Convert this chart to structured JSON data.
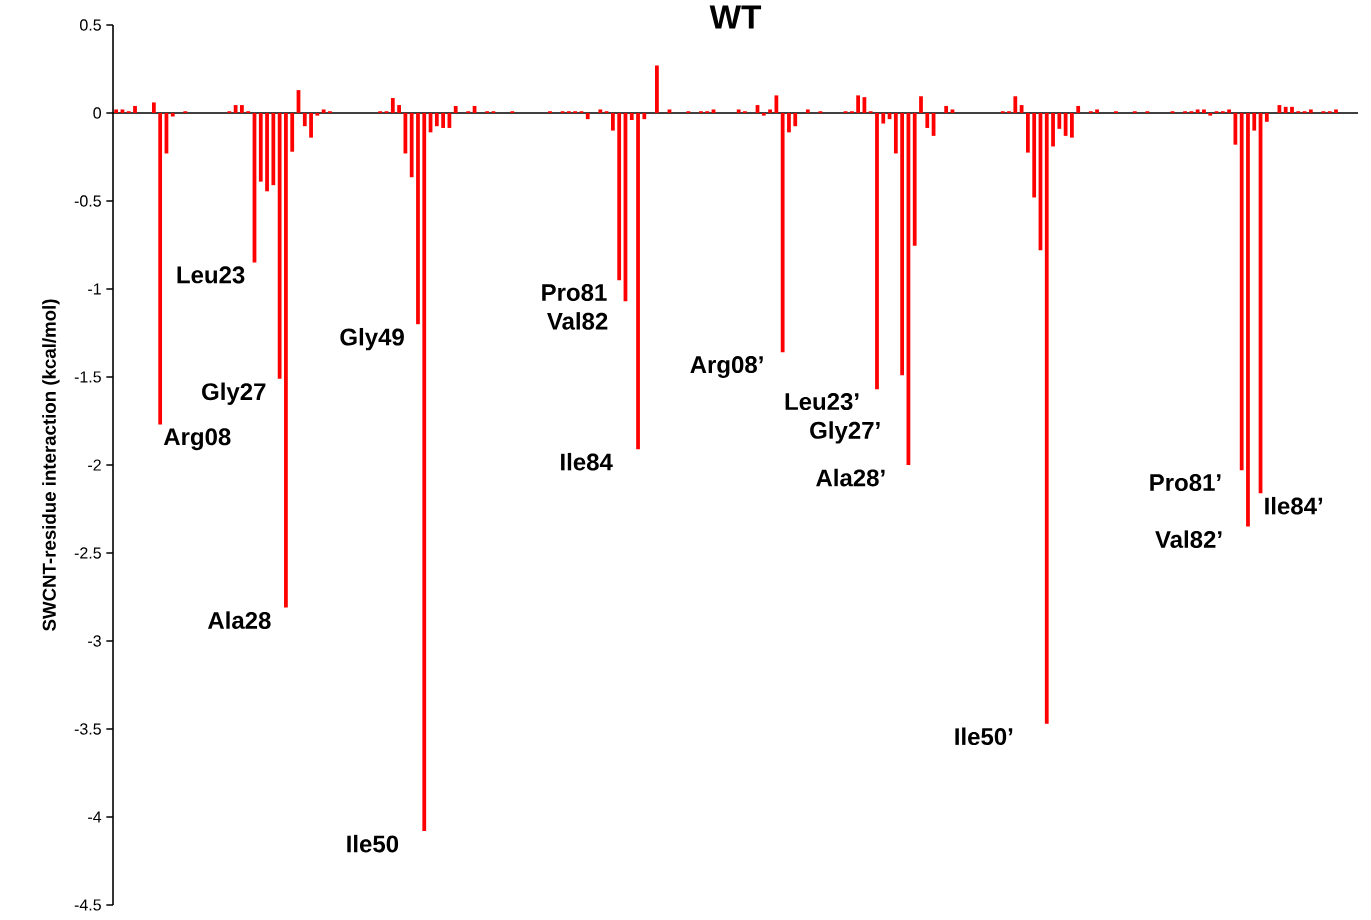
{
  "chart_data": {
    "type": "bar",
    "title": "WT",
    "ylabel": "SWCNT-residue interaction (kcal/mol)",
    "categories": [
      null,
      null,
      null,
      null,
      null,
      null,
      null,
      null,
      null,
      null,
      null,
      null,
      null,
      null,
      null,
      null,
      null,
      null,
      null,
      null,
      null,
      null,
      null,
      null,
      null,
      null,
      null,
      null,
      null,
      null,
      null,
      null,
      null,
      null,
      null,
      null,
      null,
      null,
      null,
      null,
      null,
      null,
      null,
      null,
      null,
      null,
      null,
      null,
      null,
      null,
      null,
      null,
      null,
      null,
      null,
      null,
      null,
      null,
      null,
      null,
      null,
      null,
      null,
      null,
      null,
      null,
      null,
      null,
      null,
      null,
      null,
      null,
      null,
      null,
      null,
      null,
      null,
      null,
      null,
      null,
      null,
      null,
      null,
      null,
      null,
      null,
      null,
      null,
      null,
      null,
      null,
      null,
      null,
      null,
      null,
      null,
      null,
      null,
      null,
      null,
      null,
      null,
      null,
      null,
      null,
      null,
      null,
      null,
      null,
      null,
      null,
      null,
      null,
      null,
      null,
      null,
      null,
      null,
      null,
      null,
      null,
      null,
      null,
      null,
      null,
      null,
      null,
      null,
      null,
      null,
      null,
      null,
      null,
      null,
      null,
      null,
      null,
      null,
      null,
      null,
      null,
      null,
      null,
      null,
      null,
      null,
      null,
      null,
      null,
      null,
      null,
      null,
      null,
      null,
      null,
      null,
      null,
      null,
      null,
      null,
      null,
      null,
      null,
      null,
      null,
      null,
      null,
      null,
      null,
      null,
      null,
      null,
      null,
      null,
      null,
      null,
      null,
      null,
      null,
      null,
      null,
      null,
      null,
      null,
      null,
      null,
      null,
      null,
      null,
      null,
      null,
      null,
      null,
      null,
      null,
      null,
      null,
      null
    ],
    "values": [
      0.02,
      0.02,
      0.01,
      0.04,
      0,
      0,
      0.06,
      -1.77,
      -0.23,
      -0.02,
      0,
      0.01,
      0,
      0,
      0,
      0,
      0,
      0,
      0.01,
      0.045,
      0.045,
      0.01,
      -0.85,
      -0.39,
      -0.445,
      -0.41,
      -1.51,
      -2.81,
      -0.22,
      0.13,
      -0.075,
      -0.14,
      -0.015,
      0.02,
      0.01,
      0,
      0,
      0,
      0,
      0,
      0,
      0,
      0.01,
      0.01,
      0.085,
      0.045,
      -0.23,
      -0.365,
      -1.2,
      -4.08,
      -0.11,
      -0.075,
      -0.085,
      -0.085,
      0.04,
      0,
      0.01,
      0.04,
      0,
      0.01,
      0.01,
      0,
      0,
      0.01,
      0,
      0,
      0,
      0,
      0,
      0.01,
      0,
      0.01,
      0.01,
      0.01,
      0.01,
      -0.035,
      0,
      0.02,
      0.01,
      -0.1,
      -0.95,
      -1.07,
      -0.04,
      -1.91,
      -0.035,
      0,
      0.27,
      0,
      0.02,
      0,
      0,
      0.01,
      0,
      0.01,
      0.01,
      0.02,
      0,
      0,
      0,
      0.02,
      0.01,
      0,
      0.045,
      -0.015,
      0.02,
      0.1,
      -1.36,
      -0.11,
      -0.075,
      0,
      0.02,
      0,
      0.01,
      0,
      0,
      0,
      0.01,
      0.01,
      0.1,
      0.09,
      0.01,
      -1.57,
      -0.06,
      -0.035,
      -0.23,
      -1.49,
      -2.0,
      -0.755,
      0.095,
      -0.085,
      -0.13,
      0,
      0.04,
      0.02,
      0,
      0,
      0,
      0,
      0,
      0,
      0,
      0.01,
      0.01,
      0.095,
      0.045,
      -0.225,
      -0.48,
      -0.78,
      -3.47,
      -0.19,
      -0.09,
      -0.13,
      -0.14,
      0.04,
      0,
      0.01,
      0.02,
      0,
      0,
      0.01,
      0,
      0,
      0.01,
      0,
      0.01,
      0,
      0,
      0,
      0.01,
      0,
      0.01,
      0.01,
      0.02,
      0.02,
      -0.015,
      0.01,
      0.01,
      0.02,
      -0.18,
      -2.03,
      -2.35,
      -0.1,
      -2.16,
      -0.05,
      0,
      0.045,
      0.035,
      0.035,
      0.01,
      0.01,
      0.02,
      0,
      0.01,
      0.01,
      0.02,
      0,
      0,
      0
    ],
    "color": "#ff0000",
    "ylim": [
      -4.5,
      0.5
    ],
    "yticks": [
      0.5,
      0,
      -0.5,
      -1,
      -1.5,
      -2,
      -2.5,
      -3,
      -3.5,
      -4,
      -4.5
    ],
    "annotations": [
      "Arg08",
      "Leu23",
      "Gly27",
      "Ala28",
      "Gly49",
      "Ile50",
      "Pro81",
      "Val82",
      "Ile84",
      "Arg08’",
      "Leu23’",
      "Gly27’",
      "Ala28’",
      "Ile50’",
      "Pro81’",
      "Val82’",
      "Ile84’"
    ]
  }
}
